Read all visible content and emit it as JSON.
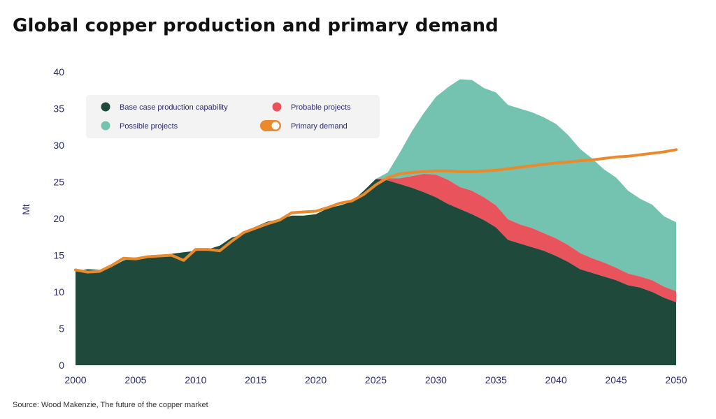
{
  "title": "Global copper production and primary demand",
  "source": "Source: Wood Makenzie, The future of the copper market",
  "chart_data": {
    "type": "area",
    "title": "Global copper production and primary demand",
    "xlabel": "",
    "ylabel": "Mt",
    "xlim": [
      2000,
      2050
    ],
    "ylim": [
      0,
      40
    ],
    "x_ticks": [
      "2000",
      "2005",
      "2010",
      "2015",
      "2020",
      "2025",
      "2030",
      "2035",
      "2040",
      "2045",
      "2050"
    ],
    "y_ticks": [
      "0",
      "5",
      "10",
      "15",
      "20",
      "25",
      "30",
      "35",
      "40"
    ],
    "grid": false,
    "legend_position": "top-left",
    "legend": [
      {
        "label": "Base case production capability",
        "color": "#1f4a3b",
        "marker": "dot"
      },
      {
        "label": "Probable projects",
        "color": "#e8535c",
        "marker": "dot"
      },
      {
        "label": "Possible projects",
        "color": "#74c2b0",
        "marker": "dot"
      },
      {
        "label": "Primary demand",
        "color": "#ea8a2c",
        "marker": "toggle"
      }
    ],
    "x": [
      2000,
      2001,
      2002,
      2003,
      2004,
      2005,
      2006,
      2007,
      2008,
      2009,
      2010,
      2011,
      2012,
      2013,
      2014,
      2015,
      2016,
      2017,
      2018,
      2019,
      2020,
      2021,
      2022,
      2023,
      2024,
      2025,
      2026,
      2027,
      2028,
      2029,
      2030,
      2031,
      2032,
      2033,
      2034,
      2035,
      2036,
      2037,
      2038,
      2039,
      2040,
      2041,
      2042,
      2043,
      2044,
      2045,
      2046,
      2047,
      2048,
      2049,
      2050
    ],
    "series": [
      {
        "name": "Base case production capability",
        "color": "#1f4a3b",
        "stack": "total",
        "values": [
          12.8,
          13.1,
          13.0,
          13.4,
          14.3,
          14.7,
          14.8,
          15.0,
          15.2,
          15.4,
          15.6,
          15.8,
          16.3,
          17.4,
          17.9,
          18.9,
          19.6,
          19.9,
          20.4,
          20.4,
          20.6,
          21.4,
          21.8,
          22.3,
          23.8,
          25.4,
          25.2,
          24.7,
          24.2,
          23.6,
          22.9,
          22.0,
          21.3,
          20.6,
          19.8,
          18.8,
          17.1,
          16.6,
          16.1,
          15.6,
          14.9,
          14.1,
          13.1,
          12.6,
          12.1,
          11.6,
          10.9,
          10.6,
          10.0,
          9.2,
          8.6
        ]
      },
      {
        "name": "Probable projects",
        "color": "#e8535c",
        "stack": "increment",
        "values": [
          0,
          0,
          0,
          0,
          0,
          0,
          0,
          0,
          0,
          0,
          0,
          0,
          0,
          0,
          0,
          0,
          0,
          0,
          0,
          0,
          0,
          0,
          0,
          0,
          0,
          0,
          0.3,
          0.8,
          1.6,
          2.5,
          3.1,
          3.3,
          3.0,
          3.2,
          3.1,
          3.0,
          2.8,
          2.6,
          2.6,
          2.4,
          2.4,
          2.3,
          2.2,
          2.0,
          1.9,
          1.7,
          1.6,
          1.5,
          1.6,
          1.5,
          1.5
        ]
      },
      {
        "name": "Possible projects",
        "color": "#74c2b0",
        "stack": "increment",
        "values": [
          0,
          0,
          0,
          0,
          0,
          0,
          0,
          0,
          0,
          0,
          0,
          0,
          0,
          0,
          0,
          0,
          0,
          0,
          0,
          0,
          0,
          0,
          0,
          0,
          0,
          0,
          0.8,
          3.5,
          6.1,
          8.3,
          10.6,
          12.6,
          14.7,
          15.1,
          14.9,
          15.4,
          15.6,
          15.8,
          15.8,
          15.8,
          15.6,
          15.0,
          14.2,
          13.6,
          12.7,
          12.3,
          11.3,
          10.6,
          10.3,
          9.6,
          9.4
        ]
      },
      {
        "name": "Primary demand",
        "color": "#ea8a2c",
        "type": "line",
        "values": [
          13.0,
          12.7,
          12.8,
          13.6,
          14.6,
          14.5,
          14.8,
          14.9,
          15.0,
          14.3,
          15.8,
          15.8,
          15.6,
          16.9,
          18.1,
          18.7,
          19.3,
          19.8,
          20.8,
          20.9,
          21.0,
          21.5,
          22.1,
          22.4,
          23.3,
          24.6,
          25.6,
          26.1,
          26.3,
          26.4,
          26.5,
          26.5,
          26.4,
          26.4,
          26.5,
          26.6,
          26.8,
          27.0,
          27.2,
          27.4,
          27.6,
          27.7,
          27.9,
          28.0,
          28.2,
          28.4,
          28.5,
          28.7,
          28.9,
          29.1,
          29.4
        ]
      }
    ]
  }
}
